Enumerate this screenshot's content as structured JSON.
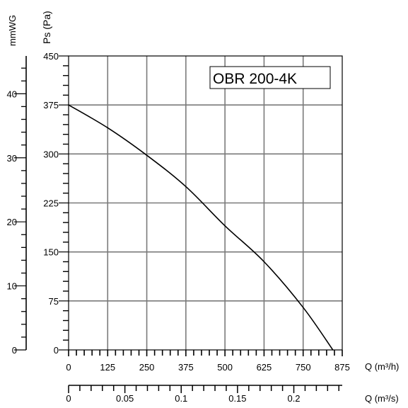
{
  "chart_data": {
    "type": "line",
    "title": "OBR 200-4K",
    "xlabel": "Q (m³/h)",
    "ylabel": "Ps (Pa)",
    "xlim": [
      0,
      875
    ],
    "ylim": [
      0,
      450
    ],
    "x_ticks": [
      "0",
      "125",
      "250",
      "375",
      "500",
      "625",
      "750",
      "875"
    ],
    "y_ticks": [
      "0",
      "75",
      "150",
      "225",
      "300",
      "375",
      "450"
    ],
    "grid": true,
    "series": [
      {
        "x": [
          0,
          125,
          250,
          375,
          500,
          625,
          750,
          845
        ],
        "y": [
          375,
          340,
          298,
          250,
          190,
          135,
          65,
          0
        ]
      }
    ],
    "secondary_x_axis": {
      "label": "Q (m³/s)",
      "lim": [
        0,
        0.243
      ],
      "ticks": [
        {
          "value": 0,
          "label": "0"
        },
        {
          "value": 0.05,
          "label": "0.05"
        },
        {
          "value": 0.1,
          "label": "0.1"
        },
        {
          "value": 0.15,
          "label": "0.15"
        },
        {
          "value": 0.2,
          "label": "0.2"
        }
      ]
    },
    "secondary_y_axis": {
      "label": "mmWG",
      "lim": [
        0,
        45.9
      ],
      "ticks": [
        {
          "value": 0,
          "label": "0"
        },
        {
          "value": 10,
          "label": "10"
        },
        {
          "value": 20,
          "label": "20"
        },
        {
          "value": 30,
          "label": "30"
        },
        {
          "value": 40,
          "label": "40"
        }
      ]
    }
  }
}
